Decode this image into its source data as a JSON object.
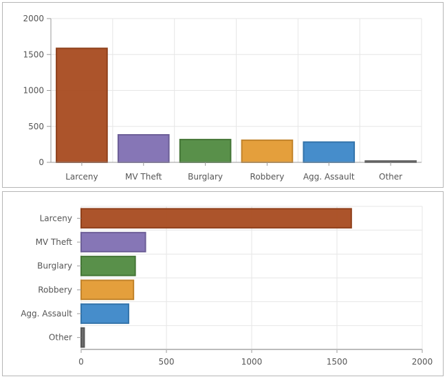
{
  "chart_data": [
    {
      "type": "bar",
      "orientation": "vertical",
      "categories": [
        "Larceny",
        "MV Theft",
        "Burglary",
        "Robbery",
        "Agg. Assault",
        "Other"
      ],
      "values": [
        1586,
        383,
        317,
        308,
        282,
        18
      ],
      "colors": [
        "#a84b20",
        "#7f6fb2",
        "#508a40",
        "#e39a32",
        "#3c87c8",
        "#666666"
      ],
      "ylim": [
        0,
        2000
      ],
      "yticks": [
        "0",
        "500",
        "1000",
        "1500",
        "2000"
      ],
      "grid": true,
      "title": "",
      "xlabel": "",
      "ylabel": ""
    },
    {
      "type": "bar",
      "orientation": "horizontal",
      "categories": [
        "Larceny",
        "MV Theft",
        "Burglary",
        "Robbery",
        "Agg. Assault",
        "Other"
      ],
      "values": [
        1584,
        377,
        317,
        307,
        278,
        18
      ],
      "colors": [
        "#a84b20",
        "#7f6fb2",
        "#508a40",
        "#e39a32",
        "#3c87c8",
        "#666666"
      ],
      "xlim": [
        0,
        2000
      ],
      "xticks": [
        "0",
        "500",
        "1000",
        "1500",
        "2000"
      ],
      "grid": true,
      "title": "",
      "xlabel": "",
      "ylabel": ""
    }
  ]
}
